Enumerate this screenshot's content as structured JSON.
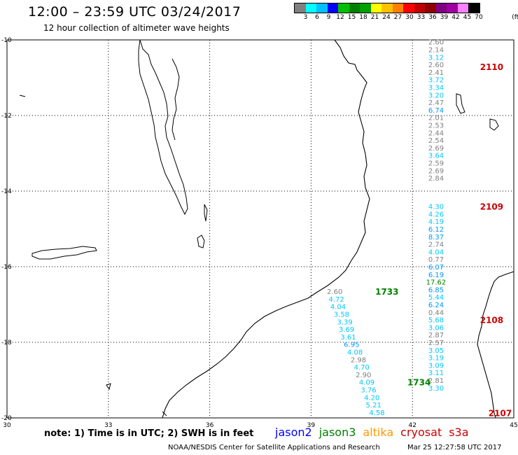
{
  "header": {
    "title": "12:00 – 23:59 UTC 03/24/2017",
    "subtitle": "12 hour collection of altimeter wave heights"
  },
  "legend": {
    "unit": "(ft)",
    "colors": [
      "#808080",
      "#00ffff",
      "#00c0ff",
      "#0000ff",
      "#00c000",
      "#008000",
      "#00a000",
      "#ffff00",
      "#ffc000",
      "#ff8000",
      "#ff0000",
      "#c00000",
      "#900000",
      "#800080",
      "#a000a0",
      "#ff80ff",
      "#000000"
    ],
    "labels": [
      "3",
      "6",
      "9",
      "12",
      "15",
      "18",
      "21",
      "24",
      "27",
      "30",
      "33",
      "36",
      "39",
      "42",
      "45",
      "70"
    ]
  },
  "axes": {
    "lon_ticks": [
      "30",
      "33",
      "36",
      "39",
      "42",
      "45"
    ],
    "lat_ticks": [
      "-10",
      "-12",
      "-14",
      "-16",
      "-18",
      "-20"
    ]
  },
  "tracks": [
    {
      "time": "2110",
      "time_color": "#cc0000",
      "time_lat": -10.7,
      "points": [
        {
          "lat": -10.05,
          "v": "2.60",
          "c": "#808080"
        },
        {
          "lat": -10.25,
          "v": "2.14",
          "c": "#808080"
        },
        {
          "lat": -10.45,
          "v": "3.12",
          "c": "#00c8ff"
        },
        {
          "lat": -10.65,
          "v": "2.60",
          "c": "#808080"
        },
        {
          "lat": -10.85,
          "v": "2.41",
          "c": "#808080"
        },
        {
          "lat": -11.05,
          "v": "3.72",
          "c": "#00c8ff"
        },
        {
          "lat": -11.25,
          "v": "3.34",
          "c": "#00c8ff"
        },
        {
          "lat": -11.45,
          "v": "3.20",
          "c": "#00c8ff"
        },
        {
          "lat": -11.65,
          "v": "2.47",
          "c": "#808080"
        },
        {
          "lat": -11.85,
          "v": "6.74",
          "c": "#0096ff"
        },
        {
          "lat": -12.05,
          "v": "2.01",
          "c": "#808080"
        },
        {
          "lat": -12.25,
          "v": "2.53",
          "c": "#808080"
        },
        {
          "lat": -12.45,
          "v": "2.44",
          "c": "#808080"
        },
        {
          "lat": -12.65,
          "v": "2.54",
          "c": "#808080"
        },
        {
          "lat": -12.85,
          "v": "2.69",
          "c": "#808080"
        },
        {
          "lat": -13.05,
          "v": "3.64",
          "c": "#00c8ff"
        },
        {
          "lat": -13.25,
          "v": "2.59",
          "c": "#808080"
        },
        {
          "lat": -13.45,
          "v": "2.69",
          "c": "#808080"
        },
        {
          "lat": -13.65,
          "v": "2.84",
          "c": "#808080"
        }
      ]
    },
    {
      "time": "2109",
      "time_color": "#cc0000",
      "time_lat": -14.4,
      "points": [
        {
          "lat": -14.4,
          "v": "4.30",
          "c": "#00c8ff"
        },
        {
          "lat": -14.6,
          "v": "4.26",
          "c": "#00c8ff"
        },
        {
          "lat": -14.8,
          "v": "4.19",
          "c": "#00c8ff"
        },
        {
          "lat": -15.0,
          "v": "6.12",
          "c": "#0096ff"
        },
        {
          "lat": -15.2,
          "v": "8.37",
          "c": "#0096ff"
        },
        {
          "lat": -15.4,
          "v": "2.74",
          "c": "#808080"
        },
        {
          "lat": -15.6,
          "v": "4.04",
          "c": "#00c8ff"
        },
        {
          "lat": -15.8,
          "v": "0.77",
          "c": "#808080"
        },
        {
          "lat": -16.0,
          "v": "6.07",
          "c": "#0096ff"
        },
        {
          "lat": -16.2,
          "v": "6.19",
          "c": "#0096ff"
        },
        {
          "lat": -16.4,
          "v": "17.62",
          "c": "#008000"
        },
        {
          "lat": -16.6,
          "v": "6.85",
          "c": "#0096ff"
        },
        {
          "lat": -16.8,
          "v": "5.44",
          "c": "#00c8ff"
        },
        {
          "lat": -17.0,
          "v": "6.24",
          "c": "#0096ff"
        },
        {
          "lat": -17.2,
          "v": "0.44",
          "c": "#808080"
        }
      ]
    },
    {
      "time": "2108",
      "time_color": "#cc0000",
      "time_lat": -17.4,
      "points": [
        {
          "lat": -17.4,
          "v": "5.68",
          "c": "#00c8ff"
        },
        {
          "lat": -17.6,
          "v": "3.06",
          "c": "#00c8ff"
        },
        {
          "lat": -17.8,
          "v": "2.87",
          "c": "#808080"
        },
        {
          "lat": -18.0,
          "v": "2.57",
          "c": "#808080"
        },
        {
          "lat": -18.2,
          "v": "3.05",
          "c": "#00c8ff"
        },
        {
          "lat": -18.4,
          "v": "3.19",
          "c": "#00c8ff"
        },
        {
          "lat": -18.6,
          "v": "3.09",
          "c": "#00c8ff"
        },
        {
          "lat": -18.8,
          "v": "3.11",
          "c": "#00c8ff"
        },
        {
          "lat": -19.0,
          "v": "2.81",
          "c": "#808080"
        },
        {
          "lat": -19.2,
          "v": "3.30",
          "c": "#00c8ff"
        }
      ]
    },
    {
      "time": "2107",
      "time_color": "#cc0000",
      "time_lat": -19.2,
      "points": []
    },
    {
      "time": "1733",
      "time_color": "#008000",
      "time_lat": -16.65,
      "points": [
        {
          "lat": -16.65,
          "lon": 39.7,
          "v": "2.60",
          "c": "#808080"
        },
        {
          "lat": -16.85,
          "lon": 39.75,
          "v": "4.72",
          "c": "#00c8ff"
        },
        {
          "lat": -17.05,
          "lon": 39.8,
          "v": "4.04",
          "c": "#00c8ff"
        },
        {
          "lat": -17.25,
          "lon": 39.9,
          "v": "3.58",
          "c": "#00c8ff"
        },
        {
          "lat": -17.45,
          "lon": 40.0,
          "v": "3.39",
          "c": "#00c8ff"
        },
        {
          "lat": -17.65,
          "lon": 40.05,
          "v": "3.69",
          "c": "#00c8ff"
        },
        {
          "lat": -17.85,
          "lon": 40.1,
          "v": "3.61",
          "c": "#00c8ff"
        },
        {
          "lat": -18.05,
          "lon": 40.2,
          "v": "6.95",
          "c": "#0096ff"
        },
        {
          "lat": -18.25,
          "lon": 40.3,
          "v": "4.08",
          "c": "#00c8ff"
        },
        {
          "lat": -18.45,
          "lon": 40.4,
          "v": "2.98",
          "c": "#808080"
        },
        {
          "lat": -18.65,
          "lon": 40.5,
          "v": "4.70",
          "c": "#00c8ff"
        },
        {
          "lat": -18.85,
          "lon": 40.55,
          "v": "2.90",
          "c": "#808080"
        }
      ]
    },
    {
      "time": "1734",
      "time_color": "#008000",
      "time_lat": -19.05,
      "points": [
        {
          "lat": -19.05,
          "lon": 40.65,
          "v": "4.09",
          "c": "#00c8ff"
        },
        {
          "lat": -19.25,
          "lon": 40.7,
          "v": "3.76",
          "c": "#00c8ff"
        },
        {
          "lat": -19.45,
          "lon": 40.8,
          "v": "4.20",
          "c": "#00c8ff"
        },
        {
          "lat": -19.65,
          "lon": 40.85,
          "v": "5.21",
          "c": "#00c8ff"
        },
        {
          "lat": -19.85,
          "lon": 40.95,
          "v": "4.58",
          "c": "#00c8ff"
        }
      ]
    }
  ],
  "footer": {
    "note": "note: 1) Time is in UTC; 2) SWH is in feet",
    "satellites": [
      {
        "name": "jason2",
        "color": "#0000ff"
      },
      {
        "name": "jason3",
        "color": "#008000"
      },
      {
        "name": "altika",
        "color": "#ff9900"
      },
      {
        "name": "cryosat",
        "color": "#cc0000"
      },
      {
        "name": "s3a",
        "color": "#cc0000"
      }
    ],
    "credit": "NOAA/NESDIS Center for Satellite Applications and Research",
    "timestamp": "Mar 25 12:27:58 UTC 2017"
  }
}
